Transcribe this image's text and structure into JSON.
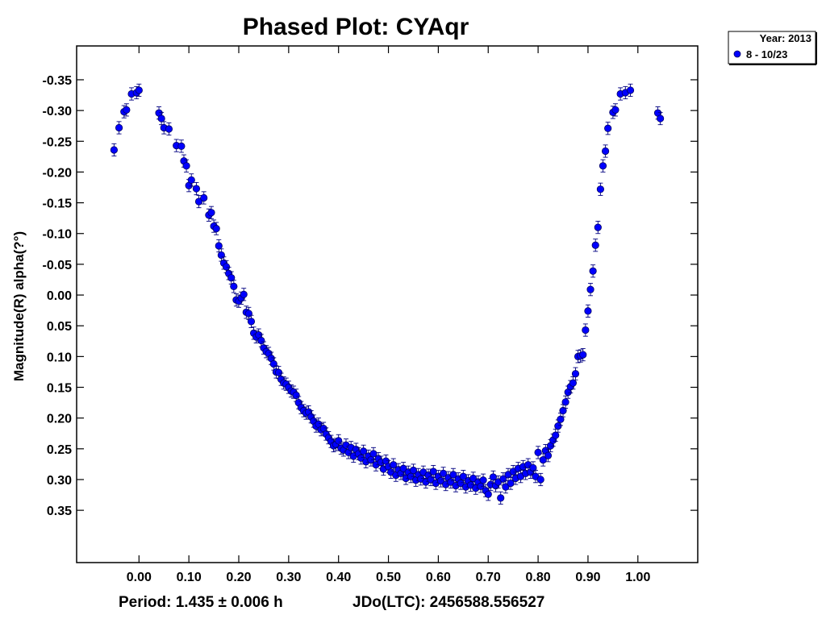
{
  "chart_data": {
    "type": "scatter",
    "title": "Phased Plot: CYAqr",
    "xlabel": "",
    "ylabel": "Magnitude(R) alpha(?°)",
    "footer": {
      "period": "Period: 1.435 ± 0.006 h",
      "epoch": "JDo(LTC): 2456588.556527"
    },
    "xlim": [
      -0.125,
      1.12
    ],
    "ylim": [
      0.435,
      -0.405
    ],
    "y_inverted": true,
    "xticks": [
      0.0,
      0.1,
      0.2,
      0.3,
      0.4,
      0.5,
      0.6,
      0.7,
      0.8,
      0.9,
      1.0
    ],
    "xtick_labels": [
      "0.00",
      "0.10",
      "0.20",
      "0.30",
      "0.40",
      "0.50",
      "0.60",
      "0.70",
      "0.80",
      "0.90",
      "1.00"
    ],
    "yticks": [
      -0.35,
      -0.3,
      -0.25,
      -0.2,
      -0.15,
      -0.1,
      -0.05,
      0.0,
      0.05,
      0.1,
      0.15,
      0.2,
      0.25,
      0.3,
      0.35
    ],
    "ytick_labels": [
      "-0.35",
      "-0.30",
      "-0.25",
      "-0.20",
      "-0.15",
      "-0.10",
      "-0.05",
      "0.00",
      "0.05",
      "0.10",
      "0.15",
      "0.20",
      "0.25",
      "0.30",
      "0.35"
    ],
    "grid": false,
    "legend": {
      "placement": "top-right outside plot",
      "title": "Year: 2013",
      "entries": [
        {
          "label": "8 - 10/23",
          "color": "#0000ff"
        }
      ]
    },
    "marker_color": "#0000ff",
    "error_bar": 0.01,
    "series": [
      {
        "name": "8 - 10/23",
        "points": [
          [
            -0.05,
            -0.236
          ],
          [
            -0.04,
            -0.272
          ],
          [
            -0.03,
            -0.298
          ],
          [
            -0.025,
            -0.301
          ],
          [
            -0.015,
            -0.327
          ],
          [
            -0.005,
            -0.329
          ],
          [
            0.0,
            -0.333
          ],
          [
            0.04,
            -0.296
          ],
          [
            0.045,
            -0.287
          ],
          [
            0.05,
            -0.272
          ],
          [
            0.06,
            -0.27
          ],
          [
            0.075,
            -0.243
          ],
          [
            0.085,
            -0.242
          ],
          [
            0.09,
            -0.218
          ],
          [
            0.095,
            -0.21
          ],
          [
            0.1,
            -0.178
          ],
          [
            0.105,
            -0.187
          ],
          [
            0.115,
            -0.173
          ],
          [
            0.12,
            -0.152
          ],
          [
            0.13,
            -0.158
          ],
          [
            0.14,
            -0.13
          ],
          [
            0.145,
            -0.134
          ],
          [
            0.15,
            -0.112
          ],
          [
            0.155,
            -0.108
          ],
          [
            0.16,
            -0.08
          ],
          [
            0.165,
            -0.065
          ],
          [
            0.17,
            -0.052
          ],
          [
            0.175,
            -0.046
          ],
          [
            0.18,
            -0.035
          ],
          [
            0.185,
            -0.028
          ],
          [
            0.19,
            -0.014
          ],
          [
            0.195,
            0.008
          ],
          [
            0.2,
            0.01
          ],
          [
            0.205,
            0.005
          ],
          [
            0.21,
            -0.001
          ],
          [
            0.215,
            0.028
          ],
          [
            0.22,
            0.03
          ],
          [
            0.225,
            0.043
          ],
          [
            0.23,
            0.062
          ],
          [
            0.235,
            0.068
          ],
          [
            0.24,
            0.065
          ],
          [
            0.245,
            0.074
          ],
          [
            0.25,
            0.086
          ],
          [
            0.255,
            0.092
          ],
          [
            0.26,
            0.095
          ],
          [
            0.265,
            0.103
          ],
          [
            0.27,
            0.112
          ],
          [
            0.275,
            0.125
          ],
          [
            0.28,
            0.126
          ],
          [
            0.285,
            0.137
          ],
          [
            0.29,
            0.143
          ],
          [
            0.295,
            0.145
          ],
          [
            0.3,
            0.15
          ],
          [
            0.305,
            0.156
          ],
          [
            0.31,
            0.158
          ],
          [
            0.315,
            0.163
          ],
          [
            0.32,
            0.175
          ],
          [
            0.325,
            0.183
          ],
          [
            0.33,
            0.188
          ],
          [
            0.335,
            0.192
          ],
          [
            0.34,
            0.19
          ],
          [
            0.345,
            0.198
          ],
          [
            0.35,
            0.205
          ],
          [
            0.355,
            0.213
          ],
          [
            0.36,
            0.21
          ],
          [
            0.365,
            0.219
          ],
          [
            0.37,
            0.217
          ],
          [
            0.375,
            0.226
          ],
          [
            0.38,
            0.232
          ],
          [
            0.385,
            0.238
          ],
          [
            0.39,
            0.245
          ],
          [
            0.395,
            0.243
          ],
          [
            0.4,
            0.237
          ],
          [
            0.405,
            0.249
          ],
          [
            0.41,
            0.252
          ],
          [
            0.415,
            0.244
          ],
          [
            0.42,
            0.256
          ],
          [
            0.425,
            0.248
          ],
          [
            0.43,
            0.262
          ],
          [
            0.435,
            0.251
          ],
          [
            0.44,
            0.258
          ],
          [
            0.445,
            0.265
          ],
          [
            0.45,
            0.254
          ],
          [
            0.455,
            0.271
          ],
          [
            0.46,
            0.262
          ],
          [
            0.465,
            0.268
          ],
          [
            0.47,
            0.258
          ],
          [
            0.475,
            0.276
          ],
          [
            0.48,
            0.266
          ],
          [
            0.485,
            0.272
          ],
          [
            0.49,
            0.283
          ],
          [
            0.495,
            0.27
          ],
          [
            0.5,
            0.279
          ],
          [
            0.505,
            0.288
          ],
          [
            0.51,
            0.276
          ],
          [
            0.515,
            0.293
          ],
          [
            0.52,
            0.284
          ],
          [
            0.525,
            0.29
          ],
          [
            0.53,
            0.282
          ],
          [
            0.535,
            0.298
          ],
          [
            0.54,
            0.288
          ],
          [
            0.545,
            0.295
          ],
          [
            0.55,
            0.285
          ],
          [
            0.555,
            0.301
          ],
          [
            0.56,
            0.292
          ],
          [
            0.565,
            0.299
          ],
          [
            0.57,
            0.288
          ],
          [
            0.575,
            0.304
          ],
          [
            0.58,
            0.293
          ],
          [
            0.585,
            0.3
          ],
          [
            0.59,
            0.287
          ],
          [
            0.595,
            0.306
          ],
          [
            0.6,
            0.295
          ],
          [
            0.605,
            0.302
          ],
          [
            0.61,
            0.29
          ],
          [
            0.615,
            0.308
          ],
          [
            0.62,
            0.297
          ],
          [
            0.625,
            0.304
          ],
          [
            0.63,
            0.292
          ],
          [
            0.635,
            0.31
          ],
          [
            0.64,
            0.299
          ],
          [
            0.645,
            0.306
          ],
          [
            0.65,
            0.295
          ],
          [
            0.655,
            0.312
          ],
          [
            0.66,
            0.302
          ],
          [
            0.665,
            0.309
          ],
          [
            0.67,
            0.298
          ],
          [
            0.675,
            0.314
          ],
          [
            0.68,
            0.304
          ],
          [
            0.685,
            0.311
          ],
          [
            0.69,
            0.301
          ],
          [
            0.695,
            0.318
          ],
          [
            0.7,
            0.324
          ],
          [
            0.705,
            0.308
          ],
          [
            0.71,
            0.296
          ],
          [
            0.715,
            0.31
          ],
          [
            0.72,
            0.304
          ],
          [
            0.725,
            0.33
          ],
          [
            0.73,
            0.299
          ],
          [
            0.735,
            0.312
          ],
          [
            0.74,
            0.292
          ],
          [
            0.745,
            0.306
          ],
          [
            0.75,
            0.287
          ],
          [
            0.755,
            0.298
          ],
          [
            0.76,
            0.282
          ],
          [
            0.765,
            0.295
          ],
          [
            0.77,
            0.279
          ],
          [
            0.775,
            0.29
          ],
          [
            0.78,
            0.276
          ],
          [
            0.785,
            0.288
          ],
          [
            0.79,
            0.281
          ],
          [
            0.795,
            0.295
          ],
          [
            0.8,
            0.256
          ],
          [
            0.805,
            0.3
          ],
          [
            0.81,
            0.268
          ],
          [
            0.815,
            0.253
          ],
          [
            0.82,
            0.261
          ],
          [
            0.825,
            0.245
          ],
          [
            0.83,
            0.236
          ],
          [
            0.835,
            0.228
          ],
          [
            0.84,
            0.213
          ],
          [
            0.845,
            0.202
          ],
          [
            0.85,
            0.188
          ],
          [
            0.855,
            0.174
          ],
          [
            0.86,
            0.158
          ],
          [
            0.865,
            0.149
          ],
          [
            0.87,
            0.143
          ],
          [
            0.875,
            0.128
          ],
          [
            0.88,
            0.1
          ],
          [
            0.885,
            0.099
          ],
          [
            0.89,
            0.097
          ],
          [
            0.895,
            0.057
          ],
          [
            0.9,
            0.026
          ],
          [
            0.905,
            -0.009
          ],
          [
            0.91,
            -0.039
          ],
          [
            0.915,
            -0.081
          ],
          [
            0.92,
            -0.11
          ],
          [
            0.925,
            -0.172
          ],
          [
            0.93,
            -0.21
          ],
          [
            0.935,
            -0.234
          ],
          [
            0.94,
            -0.271
          ],
          [
            0.95,
            -0.297
          ],
          [
            0.955,
            -0.301
          ],
          [
            0.965,
            -0.327
          ],
          [
            0.975,
            -0.329
          ],
          [
            0.985,
            -0.333
          ],
          [
            1.04,
            -0.296
          ],
          [
            1.045,
            -0.287
          ]
        ]
      }
    ]
  }
}
